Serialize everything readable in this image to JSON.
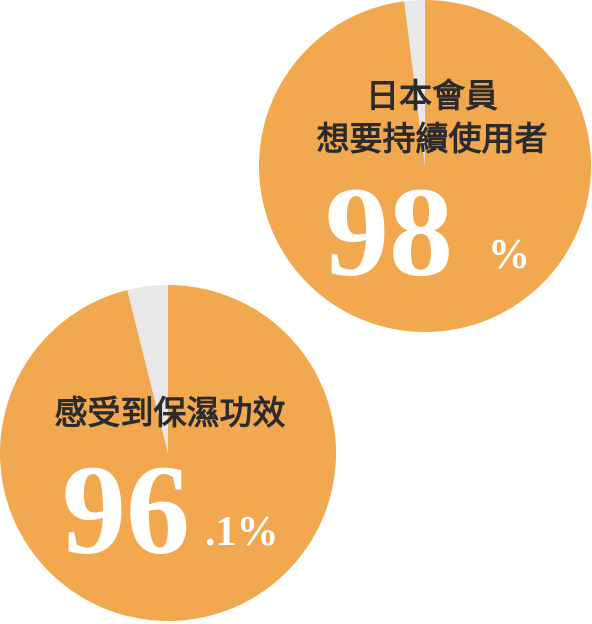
{
  "chart_data": [
    {
      "type": "pie",
      "label_lines": [
        "日本會員",
        "想要持續使用者"
      ],
      "value": 98,
      "value_text": "98",
      "unit_text": "%",
      "slices": [
        {
          "value": 98,
          "color": "#f2a84f"
        },
        {
          "value": 2,
          "color": "#e8e8e8"
        }
      ]
    },
    {
      "type": "pie",
      "label_lines": [
        "感受到保濕功效"
      ],
      "value": 96.1,
      "value_text": "96",
      "unit_text": ".1%",
      "slices": [
        {
          "value": 96.1,
          "color": "#f2a84f"
        },
        {
          "value": 3.9,
          "color": "#e8e8e8"
        }
      ]
    }
  ]
}
